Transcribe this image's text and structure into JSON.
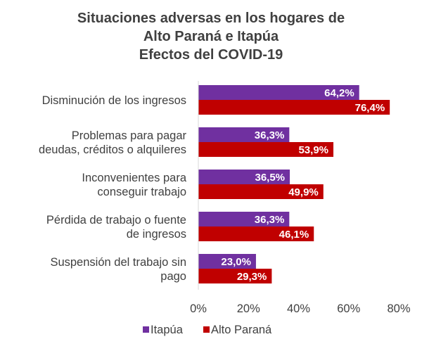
{
  "chart_data": {
    "type": "bar",
    "orientation": "horizontal",
    "title_lines": [
      "Situaciones  adversas  en los hogares de",
      "Alto Paraná e Itapúa",
      "Efectos del COVID-19"
    ],
    "categories": [
      [
        "Disminución de los ingresos"
      ],
      [
        "Problemas para pagar",
        "deudas, créditos o alquileres"
      ],
      [
        "Inconvenientes para",
        "conseguir trabajo"
      ],
      [
        "Pérdida de trabajo o fuente",
        "de ingresos"
      ],
      [
        "Suspensión del trabajo sin",
        "pago"
      ]
    ],
    "series": [
      {
        "name": "Itapúa",
        "color": "#7030A0",
        "values": [
          64.2,
          36.3,
          36.5,
          36.3,
          23.0
        ],
        "labels": [
          "64,2%",
          "36,3%",
          "36,5%",
          "36,3%",
          "23,0%"
        ]
      },
      {
        "name": "Alto Paraná",
        "color": "#C00000",
        "values": [
          76.4,
          53.9,
          49.9,
          46.1,
          29.3
        ],
        "labels": [
          "76,4%",
          "53,9%",
          "49,9%",
          "46,1%",
          "29,3%"
        ]
      }
    ],
    "xlim": [
      0,
      80
    ],
    "xticks": [
      "0%",
      "20%",
      "40%",
      "60%",
      "80%"
    ],
    "xtick_values": [
      0,
      20,
      40,
      60,
      80
    ],
    "grid": false,
    "legend_position": "bottom"
  }
}
